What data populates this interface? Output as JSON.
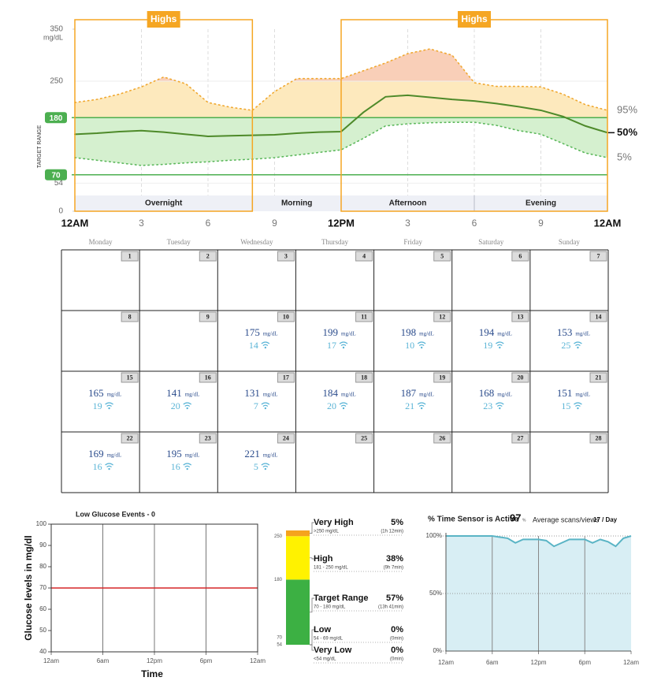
{
  "chart_data": [
    {
      "type": "percentile-band",
      "highs_label": "Highs",
      "y_unit": "mg/dL",
      "y_axis_label": "TARGET RANGE",
      "xlim": [
        0,
        24
      ],
      "xticks": [
        {
          "value": 0,
          "label": "12AM"
        },
        3,
        6,
        9,
        {
          "value": 12,
          "label": "12PM"
        },
        {
          "value": 15,
          "label": "3"
        },
        {
          "value": 18,
          "label": "6"
        },
        {
          "value": 21,
          "label": "9"
        },
        {
          "value": 24,
          "label": "12AM"
        }
      ],
      "ylim": [
        0,
        350
      ],
      "yticks": [
        0,
        54,
        70,
        180,
        250,
        350
      ],
      "target_range": [
        70,
        180
      ],
      "target_color": "#4caf50",
      "zones": [
        {
          "from": 250,
          "color": "#f9cfb8"
        },
        {
          "from": 180,
          "color": "#fde9bd"
        },
        {
          "from": 0,
          "color": "#d5f0cf"
        }
      ],
      "highs_periods": [
        [
          0,
          8
        ],
        [
          12,
          24
        ]
      ],
      "highs_color": "#f5a623",
      "sections": [
        {
          "label": "Overnight",
          "range": [
            0,
            8
          ]
        },
        {
          "label": "Morning",
          "range": [
            8,
            12
          ]
        },
        {
          "label": "Afternoon",
          "range": [
            12,
            18
          ]
        },
        {
          "label": "Evening",
          "range": [
            18,
            24
          ]
        }
      ],
      "x": [
        0,
        1,
        2,
        3,
        4,
        5,
        6,
        7,
        8,
        9,
        10,
        11,
        12,
        13,
        14,
        15,
        16,
        17,
        18,
        19,
        20,
        21,
        22,
        23,
        24
      ],
      "series": [
        {
          "name": "95%",
          "color": "#f0a830",
          "values": [
            209,
            215,
            225,
            239,
            258,
            245,
            209,
            200,
            194,
            230,
            255,
            255,
            255,
            270,
            285,
            303,
            312,
            300,
            247,
            240,
            240,
            239,
            225,
            205,
            194
          ]
        },
        {
          "name": "50%",
          "color": "#4e8a2a",
          "values": [
            148,
            150,
            153,
            155,
            152,
            148,
            144,
            145,
            146,
            147,
            150,
            152,
            153,
            190,
            220,
            223,
            219,
            215,
            212,
            207,
            201,
            194,
            182,
            164,
            151
          ]
        },
        {
          "name": "5%",
          "color": "#5cb85c",
          "values": [
            103,
            98,
            93,
            88,
            90,
            93,
            95,
            98,
            100,
            103,
            108,
            113,
            118,
            140,
            164,
            168,
            170,
            171,
            171,
            165,
            155,
            148,
            130,
            112,
            103
          ]
        }
      ]
    },
    {
      "type": "threshold-line",
      "title": "Low Glucose Events - 0",
      "y_label": "Glucose levels in mg/dl",
      "x_label": "Time",
      "xlim": [
        0,
        24
      ],
      "xticks": [
        {
          "value": 0,
          "label": "12am"
        },
        {
          "value": 6,
          "label": "6am"
        },
        {
          "value": 12,
          "label": "12pm"
        },
        {
          "value": 18,
          "label": "6pm"
        },
        {
          "value": 24,
          "label": "12am"
        }
      ],
      "ylim": [
        40,
        100
      ],
      "yticks": [
        40,
        50,
        60,
        70,
        80,
        90,
        100
      ],
      "threshold": 70,
      "threshold_color": "#d62728"
    },
    {
      "type": "stacked-bar",
      "categories": [
        "Very High",
        "High",
        "Target Range",
        "Low",
        "Very Low"
      ],
      "values": [
        5,
        38,
        57,
        0,
        0
      ],
      "value_labels": [
        "5%",
        "38%",
        "57%",
        "0%",
        "0%"
      ],
      "ranges": [
        ">250 mg/dL",
        "181 - 250 mg/dL",
        "70 - 180 mg/dL",
        "54 - 69 mg/dL",
        "<54 mg/dL"
      ],
      "durations": [
        "(1h 12min)",
        "(9h 7min)",
        "(13h 41min)",
        "(0min)",
        "(0min)"
      ],
      "colors": [
        "#f5a31e",
        "#fff200",
        "#3cb043",
        "#e0242b",
        "#a8171b"
      ],
      "boundaries": [
        250,
        180,
        70,
        54
      ]
    },
    {
      "type": "area",
      "title": "% Time Sensor is Active",
      "active": 97,
      "active_unit": "%",
      "scans_label": "Average scans/views",
      "scans": 17,
      "scans_unit": "/ Day",
      "color": "#5ab4c5",
      "fill": "#d8eef4",
      "xlim": [
        0,
        24
      ],
      "xticks": [
        {
          "value": 0,
          "label": "12am"
        },
        {
          "value": 6,
          "label": "6am"
        },
        {
          "value": 12,
          "label": "12pm"
        },
        {
          "value": 18,
          "label": "6pm"
        },
        {
          "value": 24,
          "label": "12am"
        }
      ],
      "ylim": [
        0,
        100
      ],
      "yticks": [
        {
          "value": 0,
          "label": "0%"
        },
        {
          "value": 50,
          "label": "50%"
        },
        {
          "value": 100,
          "label": "100%"
        }
      ],
      "x": [
        0,
        1,
        2,
        3,
        4,
        5,
        6,
        7,
        8,
        9,
        10,
        11,
        12,
        13,
        14,
        15,
        16,
        17,
        18,
        19,
        20,
        21,
        22,
        23,
        24
      ],
      "values": [
        100,
        100,
        100,
        100,
        100,
        100,
        100,
        99,
        98,
        94,
        97,
        97,
        97,
        96,
        91,
        94,
        97,
        97,
        97,
        94,
        97,
        95,
        91,
        98,
        100
      ]
    }
  ],
  "calendar": {
    "weekdays": [
      "Monday",
      "Tuesday",
      "Wednesday",
      "Thursday",
      "Friday",
      "Saturday",
      "Sunday"
    ],
    "unit": "mg/dL",
    "days": [
      {
        "day": 1
      },
      {
        "day": 2
      },
      {
        "day": 3
      },
      {
        "day": 4
      },
      {
        "day": 5
      },
      {
        "day": 6
      },
      {
        "day": 7
      },
      {
        "day": 8
      },
      {
        "day": 9
      },
      {
        "day": 10,
        "avg": 175,
        "scans": 14
      },
      {
        "day": 11,
        "avg": 199,
        "scans": 17
      },
      {
        "day": 12,
        "avg": 198,
        "scans": 10
      },
      {
        "day": 13,
        "avg": 194,
        "scans": 19
      },
      {
        "day": 14,
        "avg": 153,
        "scans": 25
      },
      {
        "day": 15,
        "avg": 165,
        "scans": 19
      },
      {
        "day": 16,
        "avg": 141,
        "scans": 20
      },
      {
        "day": 17,
        "avg": 131,
        "scans": 7
      },
      {
        "day": 18,
        "avg": 184,
        "scans": 20
      },
      {
        "day": 19,
        "avg": 187,
        "scans": 21
      },
      {
        "day": 20,
        "avg": 168,
        "scans": 23
      },
      {
        "day": 21,
        "avg": 151,
        "scans": 15
      },
      {
        "day": 22,
        "avg": 169,
        "scans": 16
      },
      {
        "day": 23,
        "avg": 195,
        "scans": 16
      },
      {
        "day": 24,
        "avg": 221,
        "scans": 5
      },
      {
        "day": 25
      },
      {
        "day": 26
      },
      {
        "day": 27
      },
      {
        "day": 28
      }
    ]
  }
}
